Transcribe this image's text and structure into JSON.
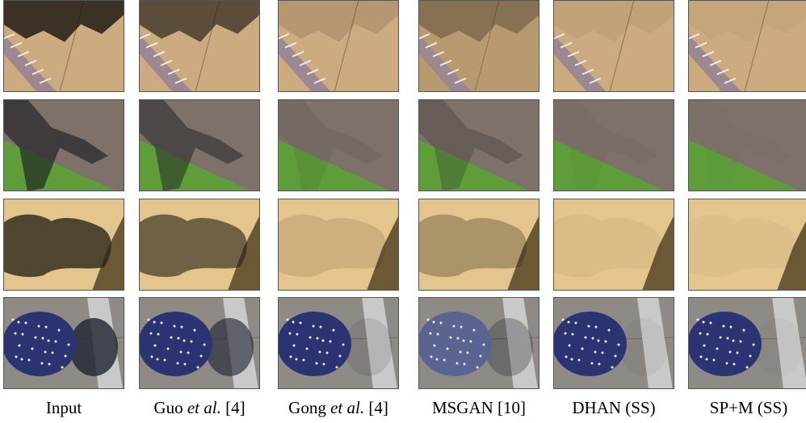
{
  "captions": [
    [
      "Input"
    ],
    [
      "Guo ",
      "et al.",
      " [4]"
    ],
    [
      "Gong ",
      "et al.",
      " [4]"
    ],
    [
      "MSGAN [10]"
    ],
    [
      "DHAN (SS)"
    ],
    [
      "SP+M (SS)"
    ]
  ]
}
